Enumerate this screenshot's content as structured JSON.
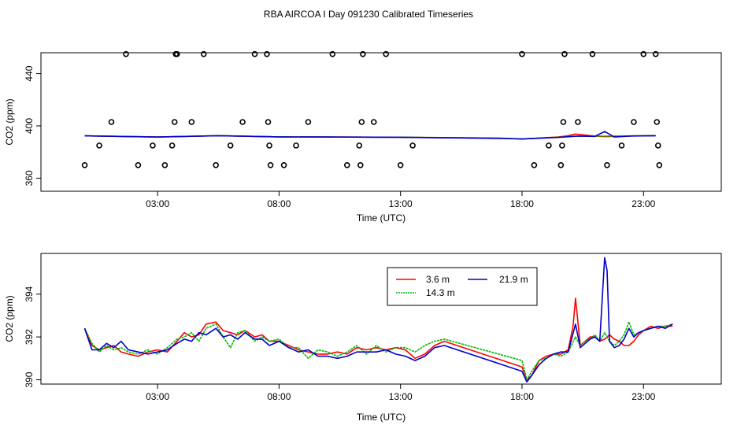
{
  "title": "RBA AIRCOA I  Day 091230  Calibrated Timeseries",
  "chart_data": [
    {
      "type": "scatter+line",
      "panel": "top",
      "xlabel": "Time (UTC)",
      "ylabel": "CO2 (ppm)",
      "xlim": [
        -1.8,
        26.2
      ],
      "ylim": [
        350,
        456
      ],
      "xticks": [
        3,
        8,
        13,
        18,
        23
      ],
      "xtick_labels": [
        "03:00",
        "08:00",
        "13:00",
        "18:00",
        "23:00"
      ],
      "yticks": [
        360,
        400,
        440
      ],
      "ytick_labels": [
        "360",
        "400",
        "440"
      ],
      "points": {
        "x": [
          0.0,
          0.6,
          1.1,
          1.7,
          2.2,
          2.8,
          3.3,
          3.6,
          3.7,
          3.75,
          3.8,
          4.4,
          4.9,
          5.4,
          6.0,
          6.5,
          7.0,
          7.5,
          7.55,
          7.6,
          7.65,
          8.2,
          8.7,
          9.2,
          10.2,
          10.8,
          11.3,
          11.35,
          11.4,
          11.45,
          11.9,
          12.4,
          13.0,
          13.5,
          18.0,
          18.5,
          19.1,
          19.6,
          19.65,
          19.7,
          19.75,
          20.3,
          20.9,
          21.5,
          22.1,
          22.6,
          23.0,
          23.5,
          23.55,
          23.6,
          23.65
        ],
        "y": [
          370,
          385,
          403,
          455,
          370,
          385,
          370,
          385,
          403,
          455,
          455,
          403,
          455,
          370,
          385,
          403,
          455,
          455,
          403,
          385,
          370,
          370,
          385,
          403,
          455,
          370,
          385,
          370,
          403,
          455,
          403,
          455,
          370,
          385,
          455,
          370,
          385,
          370,
          385,
          403,
          455,
          403,
          455,
          370,
          385,
          403,
          455,
          455,
          403,
          385,
          370
        ]
      },
      "series": [
        {
          "name": "3.6 m",
          "color": "#ff0000",
          "x": [
            0,
            3,
            5.5,
            8,
            13,
            17,
            18,
            19.5,
            19.9,
            20.2,
            21,
            21.4,
            22.5,
            23.5
          ],
          "y": [
            392.4,
            391.5,
            392.5,
            391.6,
            391.3,
            390.6,
            390.0,
            391.5,
            392.5,
            393.8,
            392.2,
            391.8,
            392.3,
            392.5
          ]
        },
        {
          "name": "14.3 m",
          "color": "#00bb00",
          "x": [
            0,
            3,
            5.5,
            8,
            13,
            17,
            18,
            19.5,
            20,
            20.3,
            21.4,
            22.5,
            23.5
          ],
          "y": [
            392.4,
            391.5,
            392.5,
            391.6,
            391.3,
            390.8,
            390.0,
            391.3,
            392.0,
            392.2,
            392.2,
            392.4,
            392.6
          ]
        },
        {
          "name": "21.9 m",
          "color": "#0000cc",
          "x": [
            0,
            3,
            5.5,
            8,
            13,
            17,
            18,
            19.5,
            20.3,
            21,
            21.4,
            21.8,
            22.5,
            23.5
          ],
          "y": [
            392.4,
            391.5,
            392.5,
            391.6,
            391.3,
            390.5,
            390.0,
            391.2,
            392.2,
            392.0,
            395.7,
            391.5,
            392.3,
            392.5
          ]
        }
      ]
    },
    {
      "type": "line",
      "panel": "bottom",
      "xlabel": "Time (UTC)",
      "ylabel": "CO2 (ppm)",
      "xlim": [
        -1.8,
        26.2
      ],
      "ylim": [
        389.8,
        395.9
      ],
      "xticks": [
        3,
        8,
        13,
        18,
        23
      ],
      "xtick_labels": [
        "03:00",
        "08:00",
        "13:00",
        "18:00",
        "23:00"
      ],
      "yticks": [
        390,
        392,
        394
      ],
      "ytick_labels": [
        "390",
        "392",
        "394"
      ],
      "legend": {
        "position": "top-center",
        "entries": [
          "3.6 m",
          "21.9 m",
          "14.3 m"
        ]
      },
      "series": [
        {
          "name": "3.6 m",
          "color": "#ff0000",
          "x": [
            0.0,
            0.3,
            0.6,
            0.9,
            1.2,
            1.5,
            1.8,
            2.2,
            2.6,
            3.0,
            3.4,
            3.8,
            4.1,
            4.4,
            4.7,
            5.0,
            5.4,
            5.7,
            6.0,
            6.3,
            6.6,
            7.0,
            7.3,
            7.6,
            8.0,
            8.4,
            8.8,
            9.2,
            9.6,
            10.0,
            10.4,
            10.8,
            11.2,
            11.6,
            12.0,
            12.4,
            12.8,
            13.2,
            13.6,
            14.0,
            14.4,
            14.8,
            18.0,
            18.2,
            18.4,
            18.7,
            19.0,
            19.3,
            19.6,
            19.9,
            20.1,
            20.2,
            20.4,
            20.6,
            20.8,
            21.0,
            21.2,
            21.4,
            21.6,
            21.8,
            22.0,
            22.2,
            22.4,
            22.6,
            22.8,
            23.0,
            23.3,
            23.6,
            23.9,
            24.2
          ],
          "y": [
            392.4,
            391.6,
            391.4,
            391.5,
            391.6,
            391.3,
            391.2,
            391.1,
            391.3,
            391.4,
            391.3,
            391.8,
            392.2,
            392.0,
            392.1,
            392.6,
            392.7,
            392.3,
            392.2,
            392.1,
            392.3,
            392.0,
            392.1,
            391.8,
            391.8,
            391.6,
            391.4,
            391.3,
            391.2,
            391.2,
            391.3,
            391.2,
            391.5,
            391.4,
            391.5,
            391.4,
            391.5,
            391.4,
            391.0,
            391.2,
            391.6,
            391.8,
            390.6,
            390.0,
            390.2,
            390.9,
            391.1,
            391.2,
            391.2,
            391.4,
            392.5,
            393.8,
            391.6,
            391.8,
            392.0,
            392.0,
            391.8,
            391.9,
            392.1,
            391.9,
            391.8,
            391.6,
            391.6,
            391.8,
            392.1,
            392.3,
            392.5,
            392.4,
            392.5,
            392.5
          ]
        },
        {
          "name": "14.3 m",
          "color": "#00bb00",
          "x": [
            0.0,
            0.3,
            0.6,
            0.9,
            1.2,
            1.5,
            1.8,
            2.2,
            2.6,
            3.0,
            3.4,
            3.8,
            4.1,
            4.4,
            4.7,
            5.0,
            5.4,
            5.7,
            6.0,
            6.3,
            6.6,
            7.0,
            7.3,
            7.6,
            8.0,
            8.4,
            8.8,
            9.2,
            9.6,
            10.0,
            10.4,
            10.8,
            11.2,
            11.6,
            12.0,
            12.4,
            12.8,
            13.2,
            13.6,
            14.0,
            14.4,
            14.8,
            18.0,
            18.2,
            18.4,
            18.7,
            19.0,
            19.3,
            19.6,
            19.9,
            20.2,
            20.4,
            20.6,
            20.8,
            21.0,
            21.2,
            21.4,
            21.6,
            21.8,
            22.0,
            22.2,
            22.4,
            22.6,
            22.8,
            23.0,
            23.3,
            23.6,
            23.9,
            24.2
          ],
          "y": [
            392.4,
            391.7,
            391.3,
            391.6,
            391.4,
            391.5,
            391.3,
            391.2,
            391.4,
            391.2,
            391.5,
            391.9,
            392.0,
            392.2,
            391.8,
            392.4,
            392.6,
            392.0,
            391.5,
            392.2,
            392.3,
            391.8,
            392.0,
            391.8,
            391.9,
            391.5,
            391.5,
            391.0,
            391.4,
            391.3,
            391.1,
            391.3,
            391.6,
            391.2,
            391.6,
            391.3,
            391.5,
            391.5,
            391.3,
            391.6,
            391.8,
            391.9,
            390.9,
            390.0,
            390.4,
            390.9,
            391.0,
            391.2,
            391.1,
            391.3,
            392.0,
            391.6,
            391.8,
            391.9,
            392.1,
            391.8,
            392.2,
            391.8,
            391.6,
            391.8,
            392.1,
            392.7,
            392.1,
            392.2,
            392.3,
            392.4,
            392.5,
            392.5,
            392.6
          ]
        },
        {
          "name": "21.9 m",
          "color": "#0000cc",
          "x": [
            0.0,
            0.3,
            0.6,
            0.9,
            1.2,
            1.5,
            1.8,
            2.2,
            2.6,
            3.0,
            3.4,
            3.8,
            4.1,
            4.4,
            4.7,
            5.0,
            5.4,
            5.7,
            6.0,
            6.3,
            6.6,
            7.0,
            7.3,
            7.6,
            8.0,
            8.4,
            8.8,
            9.2,
            9.6,
            10.0,
            10.4,
            10.8,
            11.2,
            11.6,
            12.0,
            12.4,
            12.8,
            13.2,
            13.6,
            14.0,
            14.4,
            14.8,
            18.0,
            18.2,
            18.4,
            18.7,
            19.0,
            19.3,
            19.6,
            19.9,
            20.2,
            20.4,
            20.6,
            20.8,
            21.0,
            21.2,
            21.4,
            21.5,
            21.6,
            21.8,
            22.0,
            22.2,
            22.4,
            22.6,
            22.8,
            23.0,
            23.3,
            23.6,
            23.9,
            24.2
          ],
          "y": [
            392.4,
            391.4,
            391.4,
            391.7,
            391.5,
            391.8,
            391.4,
            391.3,
            391.2,
            391.3,
            391.4,
            391.7,
            391.9,
            391.8,
            392.2,
            392.1,
            392.4,
            392.0,
            392.1,
            391.9,
            392.2,
            391.9,
            391.9,
            391.6,
            391.8,
            391.5,
            391.3,
            391.4,
            391.1,
            391.1,
            391.0,
            391.1,
            391.3,
            391.3,
            391.3,
            391.4,
            391.2,
            391.1,
            390.9,
            391.1,
            391.5,
            391.6,
            390.4,
            389.9,
            390.2,
            390.7,
            391.0,
            391.2,
            391.3,
            391.3,
            392.6,
            391.5,
            391.7,
            391.9,
            392.0,
            391.8,
            395.7,
            395.1,
            391.8,
            391.5,
            391.6,
            391.9,
            392.4,
            392.0,
            392.2,
            392.3,
            392.4,
            392.5,
            392.4,
            392.6
          ]
        }
      ]
    }
  ]
}
